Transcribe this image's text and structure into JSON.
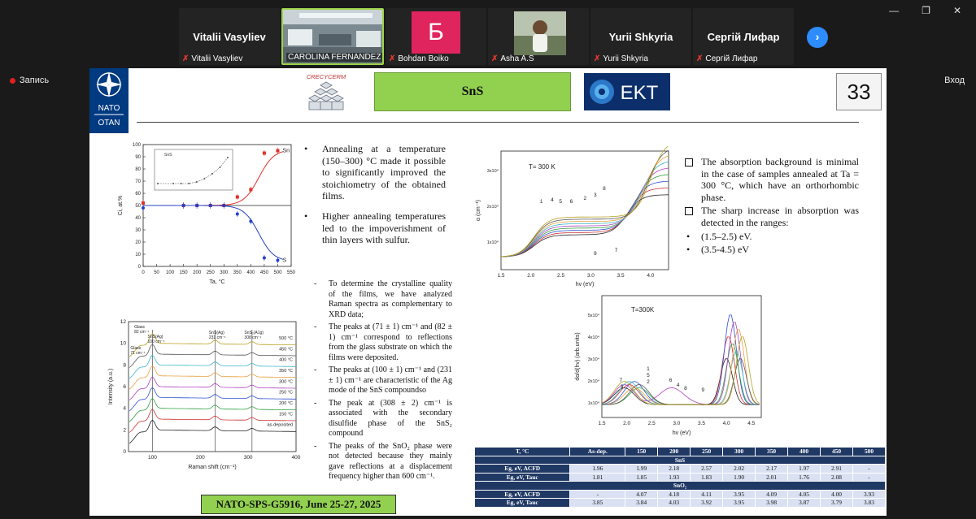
{
  "window": {
    "minimize": "—",
    "restore": "❐",
    "close": "✕"
  },
  "participants": [
    {
      "name": "Vitalii Vasyliev",
      "label": "Vitalii Vasyliev",
      "muted": true,
      "type": "name"
    },
    {
      "name": "",
      "label": "CAROLINA FERNANDEZ S...",
      "muted": false,
      "type": "video"
    },
    {
      "name": "Б",
      "label": "Bohdan Boiko",
      "muted": true,
      "type": "avatar",
      "color": "#e0245e"
    },
    {
      "name": "",
      "label": "Asha A.S",
      "muted": true,
      "type": "video2"
    },
    {
      "name": "Yurii Shkyria",
      "label": "Yurii Shkyria",
      "muted": true,
      "type": "name"
    },
    {
      "name": "Сергій Лифар",
      "label": "Сергій Лифар",
      "muted": true,
      "type": "name"
    }
  ],
  "toolbar": {
    "recording_label": "Запись",
    "exit_label": "Вход",
    "next_icon": "›"
  },
  "slide": {
    "title": "SnS",
    "number": "33",
    "nato_top": "NATO",
    "nato_bottom": "OTAN",
    "crecy_label": "CRECYCERM",
    "ekt_label": "EKT",
    "footer": "NATO-SPS-G5916, June 25-27, 2025",
    "bullets": [
      "Annealing at a temperature (150–300) °C made it possible to significantly improved the stoichiometry of the obtained films.",
      "Higher annealing temperatures led to the impoverishment of thin layers with sulfur."
    ],
    "raman_notes": [
      "To determine the crystalline quality of the films, we have analyzed Raman spectra as complementary to XRD data;",
      "The peaks at (71 ± 1) cm⁻¹ and (82 ± 1) cm⁻¹ correspond to reflections from the glass substrate on which the films were deposited.",
      "The peaks at (100 ± 1) cm⁻¹ and (231 ± 1) cm⁻¹ are characteristic of the Ag mode of the SnS compoundso",
      "The peak at (308 ± 2) cm⁻¹ is associated with the secondary disulfide phase of the SnS₂ compound",
      "The peaks of the SnO₂ phase were not detected because they mainly gave reflections at a displacement frequency higher than 600 cm⁻¹."
    ],
    "right_notes": {
      "p1": "The absorption background is minimal in the case of samples annealed at Ta = 300 °C, which have an orthorhombic phase.",
      "p2": "The sharp increase in absorption was detected in the ranges:",
      "r1": "(1.5–2.5) eV.",
      "r2": "(3.5-4.5) eV"
    },
    "table": {
      "headers": [
        "T, °C",
        "As-dep.",
        "150",
        "200",
        "250",
        "300",
        "350",
        "400",
        "450",
        "500"
      ],
      "section1": "SnS",
      "rows1": [
        {
          "label": "Eg, eV, ACFD",
          "values": [
            "1.96",
            "1.99",
            "2.18",
            "2.57",
            "2.02",
            "2.17",
            "1.97",
            "2.91",
            "-"
          ]
        },
        {
          "label": "Eg, eV, Tauc",
          "values": [
            "1.81",
            "1.85",
            "1.93",
            "1.83",
            "1.90",
            "2.01",
            "1.76",
            "2.08",
            "-"
          ]
        }
      ],
      "section2": "SnO₂",
      "rows2": [
        {
          "label": "Eg, eV, ACFD",
          "values": [
            "-",
            "4.07",
            "4.18",
            "4.11",
            "3.95",
            "4.09",
            "4.05",
            "4.00",
            "3.93"
          ]
        },
        {
          "label": "Eg, eV, Tauc",
          "values": [
            "3.85",
            "3.84",
            "4.03",
            "3.92",
            "3.95",
            "3.98",
            "3.87",
            "3.79",
            "3.83"
          ]
        }
      ]
    }
  },
  "chart_data": [
    {
      "type": "scatter",
      "xlabel": "Ta, °C",
      "ylabel": "Ci, at.%",
      "xlim": [
        0,
        550
      ],
      "ylim": [
        0,
        100
      ],
      "xticks": [
        0,
        50,
        100,
        150,
        200,
        250,
        300,
        350,
        400,
        450,
        500,
        550
      ],
      "yticks": [
        0,
        10,
        20,
        30,
        40,
        50,
        60,
        70,
        80,
        90,
        100
      ],
      "series": [
        {
          "name": "Sn",
          "color": "#e0302a",
          "x": [
            0,
            150,
            200,
            250,
            300,
            350,
            400,
            450,
            500
          ],
          "y": [
            52,
            50,
            50,
            50,
            50,
            57,
            63,
            93,
            95
          ]
        },
        {
          "name": "S",
          "color": "#2440c8",
          "x": [
            0,
            150,
            200,
            250,
            300,
            350,
            400,
            450,
            500
          ],
          "y": [
            48,
            50,
            50,
            50,
            50,
            43,
            37,
            7,
            5
          ]
        }
      ],
      "inset": {
        "legend": "SnS",
        "x": [
          0,
          100,
          150,
          200,
          250,
          300,
          350,
          400,
          450
        ],
        "y": [
          9,
          9,
          9,
          9,
          9.5,
          10.5,
          12,
          14,
          17
        ]
      }
    },
    {
      "type": "line",
      "xlabel": "Raman shift (cm⁻¹)",
      "ylabel": "Intensity (a.u.)",
      "xlim": [
        50,
        400
      ],
      "ylim": [
        0,
        12
      ],
      "xticks": [
        100,
        200,
        300,
        400
      ],
      "yticks": [
        0,
        2,
        4,
        6,
        8,
        10,
        12
      ],
      "annotations": [
        "Glass",
        "82 cm⁻¹",
        "SnS(Ag)",
        "100 cm⁻¹",
        "Glass",
        "71 cm⁻¹",
        "SnS(Ag)",
        "231 cm⁻¹",
        "SnS₂(A1g)",
        "308 cm⁻¹"
      ],
      "series": [
        {
          "name": "500 °C",
          "color": "#b8a020",
          "offset": 10
        },
        {
          "name": "450 °C",
          "color": "#555555",
          "offset": 9
        },
        {
          "name": "400 °C",
          "color": "#3cb8c8",
          "offset": 8
        },
        {
          "name": "350 °C",
          "color": "#e8a040",
          "offset": 7
        },
        {
          "name": "300 °C",
          "color": "#b040c0",
          "offset": 6
        },
        {
          "name": "250 °C",
          "color": "#3050d0",
          "offset": 5
        },
        {
          "name": "200 °C",
          "color": "#30a040",
          "offset": 4
        },
        {
          "name": "150 °C",
          "color": "#d03030",
          "offset": 3
        },
        {
          "name": "as-deposited",
          "color": "#222222",
          "offset": 2
        }
      ]
    },
    {
      "type": "line",
      "title": "T= 300 K",
      "xlabel": "hv (eV)",
      "ylabel": "α (cm⁻¹)",
      "xlim": [
        1.5,
        4.3
      ],
      "xticks": [
        1.5,
        2.0,
        2.5,
        3.0,
        3.5,
        4.0
      ],
      "yticks": [
        "1x10⁴",
        "2x10⁴",
        "3x10⁴"
      ],
      "curve_labels": [
        "1",
        "4",
        "5",
        "6",
        "2",
        "3",
        "8",
        "9",
        "7"
      ]
    },
    {
      "type": "line",
      "title": "T=300K",
      "xlabel": "hv (eV)",
      "ylabel": "dα/d(hv) (arb.units)",
      "xlim": [
        1.5,
        4.7
      ],
      "xticks": [
        1.5,
        2.0,
        2.5,
        3.0,
        3.5,
        4.0,
        4.5
      ],
      "yticks": [
        "1x10⁴",
        "2x10⁴",
        "3x10⁴",
        "4x10⁴",
        "5x10⁴"
      ],
      "curve_labels": [
        "1",
        "7",
        "5",
        "2",
        "3",
        "6",
        "4",
        "8",
        "9"
      ]
    }
  ]
}
